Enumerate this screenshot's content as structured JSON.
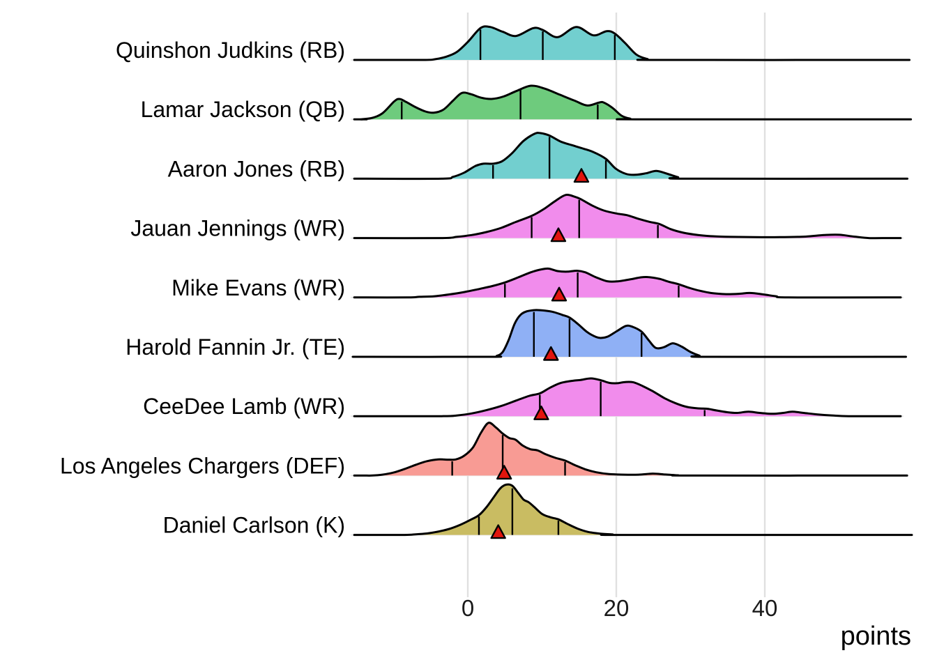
{
  "x_axis": {
    "title": "points",
    "ticks": [
      "0",
      "20",
      "40"
    ],
    "tick_values": [
      0,
      20,
      40
    ]
  },
  "chart_data": {
    "type": "ridgeline",
    "xlabel": "points",
    "x_ticks": [
      0,
      20,
      40
    ],
    "x_range": [
      -15.3,
      58.3
    ],
    "style": {
      "line_color": "#000000",
      "grid_vertical_color": "#e0e0e0",
      "grid_horizontal_color": "#e8e8e8",
      "marker_fill": "#e2150d",
      "marker_stroke": "#000000",
      "background": "#ffffff"
    },
    "rows": [
      {
        "label": "Quinshon Judkins (RB)",
        "position": "RB",
        "fill": "#72cfcf",
        "actual_points": null,
        "quartile_lines": [
          [
            1.7,
            0.53
          ],
          [
            10.1,
            0.5
          ],
          [
            19.8,
            0.44
          ]
        ],
        "density": [
          [
            -6,
            0
          ],
          [
            -4.5,
            0.01
          ],
          [
            -3,
            0.05
          ],
          [
            -1.5,
            0.13
          ],
          [
            0,
            0.3
          ],
          [
            1.7,
            0.53
          ],
          [
            3,
            0.55
          ],
          [
            4.7,
            0.47
          ],
          [
            6.5,
            0.4
          ],
          [
            8.8,
            0.53
          ],
          [
            10.1,
            0.5
          ],
          [
            12.1,
            0.38
          ],
          [
            14.6,
            0.55
          ],
          [
            16.9,
            0.41
          ],
          [
            18.7,
            0.48
          ],
          [
            19.8,
            0.44
          ],
          [
            21.2,
            0.28
          ],
          [
            22.7,
            0.09
          ],
          [
            24.2,
            0.015
          ],
          [
            25.5,
            0
          ]
        ]
      },
      {
        "label": "Lamar Jackson (QB)",
        "position": "QB",
        "fill": "#6ecb7d",
        "actual_points": null,
        "quartile_lines": [
          [
            -8.9,
            0.32
          ],
          [
            7.1,
            0.52
          ],
          [
            17.5,
            0.27
          ]
        ],
        "density": [
          [
            -14.5,
            0
          ],
          [
            -13,
            0.02
          ],
          [
            -11.5,
            0.1
          ],
          [
            -9.9,
            0.3
          ],
          [
            -9.2,
            0.34
          ],
          [
            -8.3,
            0.29
          ],
          [
            -7,
            0.2
          ],
          [
            -5.7,
            0.13
          ],
          [
            -4.6,
            0.11
          ],
          [
            -3.3,
            0.16
          ],
          [
            -2,
            0.31
          ],
          [
            -0.8,
            0.44
          ],
          [
            0.4,
            0.42
          ],
          [
            1.8,
            0.36
          ],
          [
            3.2,
            0.34
          ],
          [
            4.8,
            0.38
          ],
          [
            6.5,
            0.47
          ],
          [
            8.5,
            0.56
          ],
          [
            10.4,
            0.51
          ],
          [
            12.4,
            0.41
          ],
          [
            14.4,
            0.31
          ],
          [
            16.1,
            0.23
          ],
          [
            17.7,
            0.28
          ],
          [
            18.3,
            0.28
          ],
          [
            19.5,
            0.19
          ],
          [
            20.7,
            0.06
          ],
          [
            21.9,
            0.01
          ],
          [
            22.8,
            0
          ]
        ]
      },
      {
        "label": "Aaron Jones (RB)",
        "position": "RB",
        "fill": "#72cfcf",
        "actual_points": 15.3,
        "quartile_lines": [
          [
            3.4,
            0.25
          ],
          [
            11.0,
            0.72
          ],
          [
            18.6,
            0.33
          ]
        ],
        "density": [
          [
            -3.5,
            0
          ],
          [
            -2,
            0.03
          ],
          [
            -0.5,
            0.1
          ],
          [
            1,
            0.21
          ],
          [
            2.1,
            0.25
          ],
          [
            3.4,
            0.25
          ],
          [
            4.6,
            0.29
          ],
          [
            6,
            0.43
          ],
          [
            7.5,
            0.63
          ],
          [
            9,
            0.75
          ],
          [
            9.8,
            0.76
          ],
          [
            11,
            0.72
          ],
          [
            12.5,
            0.62
          ],
          [
            14,
            0.56
          ],
          [
            15.6,
            0.5
          ],
          [
            17,
            0.44
          ],
          [
            18.6,
            0.33
          ],
          [
            19.9,
            0.17
          ],
          [
            21.3,
            0.08
          ],
          [
            22.6,
            0.065
          ],
          [
            24,
            0.09
          ],
          [
            25.4,
            0.13
          ],
          [
            26.9,
            0.08
          ],
          [
            28.3,
            0.025
          ],
          [
            29.5,
            0
          ]
        ]
      },
      {
        "label": "Jauan Jennings (WR)",
        "position": "WR",
        "fill": "#f18cec",
        "actual_points": 12.2,
        "quartile_lines": [
          [
            8.6,
            0.37
          ],
          [
            15.0,
            0.66
          ],
          [
            25.6,
            0.24
          ]
        ],
        "density": [
          [
            -3.5,
            0
          ],
          [
            -1.5,
            0.02
          ],
          [
            0.5,
            0.05
          ],
          [
            2.5,
            0.1
          ],
          [
            4.5,
            0.17
          ],
          [
            6.5,
            0.27
          ],
          [
            8.6,
            0.37
          ],
          [
            10.2,
            0.48
          ],
          [
            11.8,
            0.62
          ],
          [
            13.2,
            0.72
          ],
          [
            14.4,
            0.69
          ],
          [
            15.2,
            0.65
          ],
          [
            16.8,
            0.54
          ],
          [
            18.3,
            0.46
          ],
          [
            20,
            0.41
          ],
          [
            21.5,
            0.38
          ],
          [
            23,
            0.32
          ],
          [
            24.5,
            0.27
          ],
          [
            25.8,
            0.235
          ],
          [
            27.3,
            0.15
          ],
          [
            29,
            0.09
          ],
          [
            31,
            0.05
          ],
          [
            33,
            0.03
          ],
          [
            35.5,
            0.02
          ],
          [
            38.5,
            0.015
          ],
          [
            42,
            0.015
          ],
          [
            45.5,
            0.025
          ],
          [
            48,
            0.05
          ],
          [
            50,
            0.055
          ],
          [
            52,
            0.025
          ],
          [
            54,
            0
          ]
        ]
      },
      {
        "label": "Mike Evans (WR)",
        "position": "WR",
        "fill": "#f18cec",
        "actual_points": 12.3,
        "quartile_lines": [
          [
            5.0,
            0.25
          ],
          [
            14.8,
            0.44
          ],
          [
            28.4,
            0.22
          ]
        ],
        "density": [
          [
            -8,
            0
          ],
          [
            -6.5,
            0.01
          ],
          [
            -4.5,
            0.02
          ],
          [
            -2.5,
            0.05
          ],
          [
            -0.5,
            0.09
          ],
          [
            1.5,
            0.14
          ],
          [
            3.3,
            0.19
          ],
          [
            5,
            0.25
          ],
          [
            6.7,
            0.33
          ],
          [
            8.5,
            0.42
          ],
          [
            10,
            0.47
          ],
          [
            10.9,
            0.48
          ],
          [
            12.1,
            0.44
          ],
          [
            13.4,
            0.43
          ],
          [
            14.7,
            0.445
          ],
          [
            15.8,
            0.42
          ],
          [
            17.2,
            0.34
          ],
          [
            18.8,
            0.27
          ],
          [
            20.3,
            0.27
          ],
          [
            21.8,
            0.3
          ],
          [
            23.3,
            0.335
          ],
          [
            24.3,
            0.34
          ],
          [
            25.8,
            0.31
          ],
          [
            27.1,
            0.26
          ],
          [
            28.4,
            0.22
          ],
          [
            29.8,
            0.16
          ],
          [
            31.3,
            0.11
          ],
          [
            33,
            0.07
          ],
          [
            34.8,
            0.055
          ],
          [
            36.5,
            0.06
          ],
          [
            38,
            0.075
          ],
          [
            39.8,
            0.05
          ],
          [
            41.5,
            0.02
          ],
          [
            43.2,
            0
          ]
        ]
      },
      {
        "label": "Harold Fannin Jr. (TE)",
        "position": "TE",
        "fill": "#8fb0f5",
        "actual_points": 11.2,
        "quartile_lines": [
          [
            8.9,
            0.77
          ],
          [
            13.7,
            0.655
          ],
          [
            23.4,
            0.42
          ]
        ],
        "density": [
          [
            3,
            0
          ],
          [
            3.9,
            0.015
          ],
          [
            4.7,
            0.08
          ],
          [
            5.5,
            0.28
          ],
          [
            6.3,
            0.55
          ],
          [
            7.1,
            0.7
          ],
          [
            8,
            0.76
          ],
          [
            9.2,
            0.78
          ],
          [
            10.4,
            0.77
          ],
          [
            11.6,
            0.745
          ],
          [
            12.7,
            0.7
          ],
          [
            13.7,
            0.655
          ],
          [
            14.9,
            0.54
          ],
          [
            16.1,
            0.41
          ],
          [
            17.3,
            0.33
          ],
          [
            18,
            0.315
          ],
          [
            18.9,
            0.34
          ],
          [
            20.1,
            0.43
          ],
          [
            21.3,
            0.515
          ],
          [
            22.2,
            0.5
          ],
          [
            23.4,
            0.42
          ],
          [
            24.4,
            0.27
          ],
          [
            25.3,
            0.15
          ],
          [
            26.4,
            0.16
          ],
          [
            27.6,
            0.225
          ],
          [
            28.8,
            0.17
          ],
          [
            30,
            0.08
          ],
          [
            31.2,
            0.02
          ],
          [
            32.2,
            0
          ]
        ]
      },
      {
        "label": "CeeDee Lamb (WR)",
        "position": "WR",
        "fill": "#f18cec",
        "actual_points": 9.9,
        "quartile_lines": [
          [
            9.7,
            0.38
          ],
          [
            17.9,
            0.6
          ],
          [
            31.9,
            0.125
          ]
        ],
        "density": [
          [
            -3.5,
            0
          ],
          [
            -1.5,
            0.012
          ],
          [
            0.5,
            0.045
          ],
          [
            2.5,
            0.1
          ],
          [
            4.5,
            0.17
          ],
          [
            6.5,
            0.26
          ],
          [
            8.3,
            0.34
          ],
          [
            9.7,
            0.38
          ],
          [
            11,
            0.47
          ],
          [
            12.4,
            0.55
          ],
          [
            13.8,
            0.585
          ],
          [
            15.2,
            0.605
          ],
          [
            16.6,
            0.63
          ],
          [
            17.9,
            0.6
          ],
          [
            19.1,
            0.555
          ],
          [
            20.1,
            0.55
          ],
          [
            21.2,
            0.57
          ],
          [
            22.3,
            0.565
          ],
          [
            23.6,
            0.5
          ],
          [
            25,
            0.41
          ],
          [
            26.5,
            0.3
          ],
          [
            28,
            0.215
          ],
          [
            29.5,
            0.155
          ],
          [
            31,
            0.13
          ],
          [
            32.2,
            0.125
          ],
          [
            33.5,
            0.095
          ],
          [
            35,
            0.065
          ],
          [
            36.3,
            0.055
          ],
          [
            37.8,
            0.075
          ],
          [
            39.3,
            0.055
          ],
          [
            41,
            0.04
          ],
          [
            42.5,
            0.055
          ],
          [
            43.7,
            0.075
          ],
          [
            45.2,
            0.055
          ],
          [
            47,
            0.03
          ],
          [
            49,
            0.013
          ],
          [
            51.3,
            0
          ]
        ]
      },
      {
        "label": "Los Angeles Chargers (DEF)",
        "position": "DEF",
        "fill": "#f89b94",
        "actual_points": 4.9,
        "quartile_lines": [
          [
            -2.1,
            0.26
          ],
          [
            4.7,
            0.7
          ],
          [
            13.1,
            0.25
          ]
        ],
        "density": [
          [
            -13,
            0
          ],
          [
            -11.5,
            0.015
          ],
          [
            -10,
            0.05
          ],
          [
            -8.5,
            0.11
          ],
          [
            -7,
            0.18
          ],
          [
            -5.5,
            0.24
          ],
          [
            -4,
            0.27
          ],
          [
            -2.7,
            0.265
          ],
          [
            -1.6,
            0.27
          ],
          [
            -0.5,
            0.33
          ],
          [
            0.7,
            0.47
          ],
          [
            1.8,
            0.72
          ],
          [
            2.8,
            0.88
          ],
          [
            3.8,
            0.8
          ],
          [
            4.7,
            0.7
          ],
          [
            5.6,
            0.625
          ],
          [
            6.4,
            0.6
          ],
          [
            7.4,
            0.5
          ],
          [
            8.4,
            0.44
          ],
          [
            9.4,
            0.42
          ],
          [
            10.5,
            0.355
          ],
          [
            11.8,
            0.295
          ],
          [
            13.1,
            0.25
          ],
          [
            14.4,
            0.175
          ],
          [
            15.8,
            0.105
          ],
          [
            17.3,
            0.055
          ],
          [
            19,
            0.025
          ],
          [
            21,
            0.015
          ],
          [
            23,
            0.015
          ],
          [
            24.9,
            0.032
          ],
          [
            26.6,
            0.018
          ],
          [
            28.3,
            0.005
          ],
          [
            30,
            0
          ]
        ]
      },
      {
        "label": "Daniel Carlson (K)",
        "position": "K",
        "fill": "#c9bc62",
        "actual_points": 4.1,
        "quartile_lines": [
          [
            1.5,
            0.33
          ],
          [
            6.0,
            0.8
          ],
          [
            12.2,
            0.26
          ]
        ],
        "density": [
          [
            -8.5,
            0
          ],
          [
            -7,
            0.01
          ],
          [
            -5.5,
            0.025
          ],
          [
            -4,
            0.055
          ],
          [
            -2.5,
            0.1
          ],
          [
            -1,
            0.17
          ],
          [
            0.5,
            0.26
          ],
          [
            1.5,
            0.33
          ],
          [
            2.5,
            0.46
          ],
          [
            3.5,
            0.63
          ],
          [
            4.4,
            0.78
          ],
          [
            5.2,
            0.84
          ],
          [
            6,
            0.82
          ],
          [
            6.8,
            0.7
          ],
          [
            7.5,
            0.59
          ],
          [
            8.2,
            0.545
          ],
          [
            9,
            0.46
          ],
          [
            10,
            0.35
          ],
          [
            11.1,
            0.295
          ],
          [
            12.2,
            0.26
          ],
          [
            13.4,
            0.185
          ],
          [
            14.8,
            0.105
          ],
          [
            16.2,
            0.05
          ],
          [
            17.8,
            0.022
          ],
          [
            19.5,
            0.008
          ],
          [
            21,
            0
          ]
        ]
      }
    ]
  }
}
